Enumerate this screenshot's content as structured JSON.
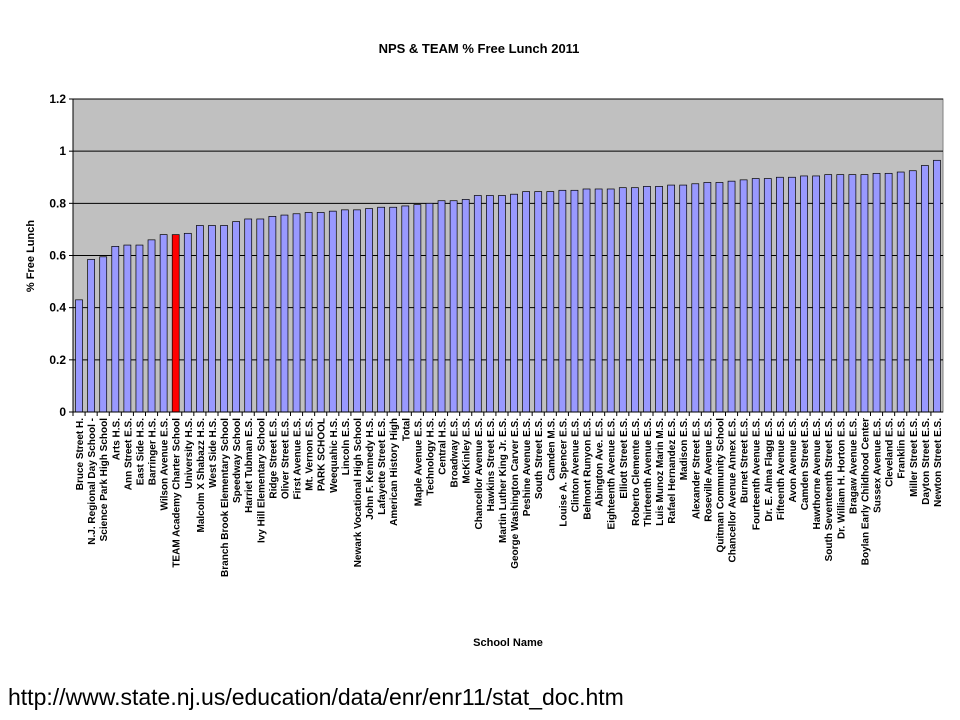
{
  "chart_data": {
    "type": "bar",
    "title": "NPS & TEAM % Free Lunch 2011",
    "xlabel": "School Name",
    "ylabel": "% Free Lunch",
    "ylim": [
      0,
      1.2
    ],
    "yticks": [
      "0",
      "0.2",
      "0.4",
      "0.6",
      "0.8",
      "1",
      "1.2"
    ],
    "grid": true,
    "legend": "none",
    "colors": {
      "bar": "#9999ff",
      "highlight": "#ff0000",
      "plot_bg": "#c0c0c0"
    },
    "highlight_category": "TEAM Academy Charter School",
    "categories": [
      "Bruce Street H.",
      "N.J. Regional Day School -",
      "Science Park High School",
      "Arts H.S.",
      "Ann Street E.S.",
      "East Side H.S.",
      "Barringer H.S.",
      "Wilson Avenue E.S.",
      "TEAM Academy Charter School",
      "University H.S.",
      "Malcolm X Shabazz H.S.",
      "West Side H.S.",
      "Branch Brook Elementary School",
      "Speedway School",
      "Harriet Tubman E.S.",
      "Ivy Hill Elementary School",
      "Ridge Street E.S.",
      "Oliver Street E.S.",
      "First Avenue E.S.",
      "Mt. Vernon E.S.",
      "PARK SCHOOL",
      "Weequahic H.S.",
      "Lincoln E.S.",
      "Newark Vocational High School",
      "John F. Kennedy H.S.",
      "Lafayette Street E.S.",
      "American History High",
      "Total",
      "Maple Avenue E.S.",
      "Technology H.S.",
      "Central H.S.",
      "Broadway E.S.",
      "McKinley E.S.",
      "Chancellor Avenue E.S.",
      "Hawkins Street E.S.",
      "Martin Luther King Jr. E.S.",
      "George Washington Carver E.S.",
      "Peshine Avenue E.S.",
      "South Street E.S.",
      "Camden M.S.",
      "Louise A. Spencer E.S.",
      "Clinton Avenue E.S.",
      "Belmont Runyon E.S.",
      "Abington Ave. E.S.",
      "Eighteenth Avenue E.S.",
      "Elliott Street E.S.",
      "Roberto Clemente E.S.",
      "Thirteenth Avenue E.S.",
      "Luis Munoz Marin M.S.",
      "Rafael Hernandez E.S.",
      "Madison E.S.",
      "Alexander Street E.S.",
      "Roseville Avenue E.S.",
      "Quitman Community School",
      "Chancellor Avenue Annex E.S.",
      "Burnet Street E.S.",
      "Fourteenth Avenue E.S.",
      "Dr. E. Alma Flagg E.S.",
      "Fifteenth Avenue E.S.",
      "Avon Avenue E.S.",
      "Camden Street E.S.",
      "Hawthorne Avenue E.S.",
      "South Seventeenth Street E.S.",
      "Dr. William H. Horton E.S.",
      "Bragaw Avenue E.S.",
      "Boylan Early Childhood Center",
      "Sussex Avenue E.S.",
      "Cleveland E.S.",
      "Franklin E.S.",
      "Miller Street E.S.",
      "Dayton Street E.S.",
      "Newton Street E.S."
    ],
    "values": [
      0.43,
      0.585,
      0.595,
      0.635,
      0.64,
      0.64,
      0.66,
      0.68,
      0.68,
      0.685,
      0.715,
      0.715,
      0.715,
      0.73,
      0.74,
      0.74,
      0.75,
      0.755,
      0.76,
      0.765,
      0.765,
      0.77,
      0.775,
      0.775,
      0.78,
      0.785,
      0.785,
      0.79,
      0.795,
      0.8,
      0.81,
      0.81,
      0.815,
      0.83,
      0.83,
      0.83,
      0.835,
      0.845,
      0.845,
      0.845,
      0.85,
      0.85,
      0.855,
      0.855,
      0.855,
      0.86,
      0.86,
      0.865,
      0.865,
      0.87,
      0.87,
      0.875,
      0.88,
      0.88,
      0.885,
      0.89,
      0.895,
      0.895,
      0.9,
      0.9,
      0.905,
      0.905,
      0.91,
      0.91,
      0.91,
      0.91,
      0.915,
      0.915,
      0.92,
      0.925,
      0.945,
      0.965
    ]
  },
  "source_url": "http://www.state.nj.us/education/data/enr/enr11/stat_doc.htm"
}
